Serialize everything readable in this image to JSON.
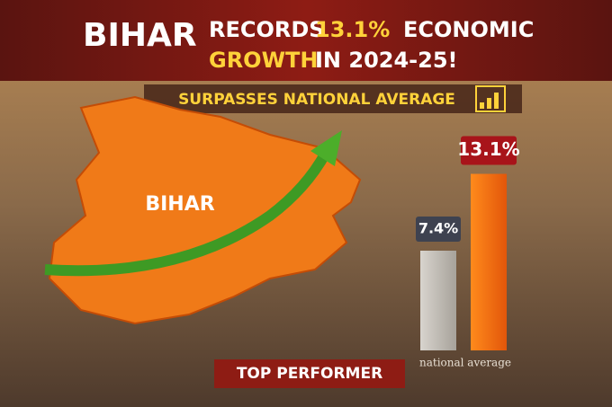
{
  "header": {
    "title_parts": [
      "BIHAR",
      "RECORDS",
      "13.1%",
      "ECONOMIC",
      "GROWTH",
      "IN 2024-25!"
    ],
    "subtitle": "SURPASSES NATIONAL AVERAGE"
  },
  "map_label": "BIHAR",
  "bars": [
    {
      "label": "national average",
      "value": 7.4,
      "value_label": "7.4%"
    },
    {
      "value": 13.1,
      "value_label": "13.1%"
    }
  ],
  "footer": "TOP PERFORMER"
}
